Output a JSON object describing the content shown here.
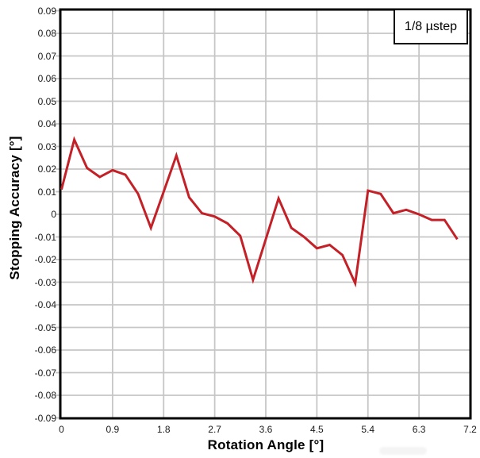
{
  "axes": {
    "x_title": "Rotation Angle [°]",
    "y_title": "Stopping Accuracy [°]"
  },
  "legend": {
    "label": "1/8 µstep"
  },
  "colors": {
    "series_red": "#c32127",
    "gridline_gray": "#c6c6c6",
    "axis_black": "#000000",
    "tick_text": "#1a1a1a",
    "background": "#ffffff"
  },
  "chart_data": {
    "type": "line",
    "title": "",
    "xlabel": "Rotation Angle [°]",
    "ylabel": "Stopping Accuracy [°]",
    "legend_entries": [
      "1/8 µstep"
    ],
    "legend_position": "top-right",
    "grid": true,
    "xlim": [
      0,
      7.2
    ],
    "ylim": [
      -0.09,
      0.09
    ],
    "xticks": [
      0,
      0.9,
      1.8,
      2.7,
      3.6,
      4.5,
      5.4,
      6.3,
      7.2
    ],
    "xtick_labels": [
      "0",
      "0.9",
      "1.8",
      "2.7",
      "3.6",
      "4.5",
      "5.4",
      "6.3",
      "7.2"
    ],
    "yticks": [
      0.09,
      0.08,
      0.07,
      0.06,
      0.05,
      0.04,
      0.03,
      0.02,
      0.01,
      0,
      -0.01,
      -0.02,
      -0.03,
      -0.04,
      -0.05,
      -0.06,
      -0.07,
      -0.08,
      -0.09
    ],
    "ytick_labels": [
      "0.09",
      "0.08",
      "0.07",
      "0.06",
      "0.05",
      "0.04",
      "0.03",
      "0.02",
      "0.01",
      "0",
      "-0.01",
      "-0.02",
      "-0.03",
      "-0.04",
      "-0.05",
      "-0.06",
      "-0.07",
      "-0.08",
      "-0.09"
    ],
    "series": [
      {
        "name": "1/8 µstep",
        "color": "#c32127",
        "x": [
          0,
          0.225,
          0.45,
          0.675,
          0.9,
          1.125,
          1.35,
          1.575,
          1.8,
          2.025,
          2.25,
          2.475,
          2.7,
          2.925,
          3.15,
          3.375,
          3.6,
          3.825,
          4.05,
          4.275,
          4.5,
          4.725,
          4.95,
          5.175,
          5.4,
          5.625,
          5.85,
          6.075,
          6.3,
          6.525,
          6.75,
          6.975
        ],
        "y": [
          0.011,
          0.033,
          0.0205,
          0.0165,
          0.0195,
          0.0175,
          0.009,
          -0.006,
          0.01,
          0.026,
          0.0075,
          0.0005,
          -0.001,
          -0.004,
          -0.0095,
          -0.029,
          -0.011,
          0.007,
          -0.006,
          -0.01,
          -0.015,
          -0.0135,
          -0.018,
          -0.0305,
          0.0105,
          0.009,
          0.0005,
          0.002,
          0.0,
          -0.0025,
          -0.0025,
          -0.011
        ]
      }
    ]
  }
}
